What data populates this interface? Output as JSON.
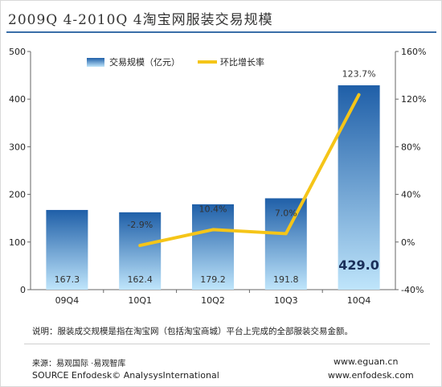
{
  "title": "2009Q 4-2010Q 4淘宝网服装交易规模",
  "chart_data": {
    "type": "bar",
    "categories": [
      "09Q4",
      "10Q1",
      "10Q2",
      "10Q3",
      "10Q4"
    ],
    "series": [
      {
        "name": "交易规模（亿元）",
        "type": "bar",
        "axis": "left",
        "values": [
          167.3,
          162.4,
          179.2,
          191.8,
          429.0
        ],
        "labels": [
          "167.3",
          "162.4",
          "179.2",
          "191.8",
          "429.0"
        ]
      },
      {
        "name": "环比增长率",
        "type": "line",
        "axis": "right",
        "values": [
          null,
          -2.9,
          10.4,
          7.0,
          123.7
        ],
        "labels": [
          "",
          "-2.9%",
          "10.4%",
          "7.0%",
          "123.7%"
        ]
      }
    ],
    "y_left": {
      "min": 0,
      "max": 500,
      "ticks": [
        "0",
        "100",
        "200",
        "300",
        "400",
        "500"
      ]
    },
    "y_right": {
      "min": -40,
      "max": 160,
      "ticks": [
        "-40%",
        "0%",
        "40%",
        "80%",
        "120%",
        "160%"
      ]
    },
    "legend_position": "top-left",
    "grid": false,
    "colors": {
      "bar_top": "#1f5fa8",
      "bar_bottom": "#bfe5fb",
      "line": "#f5c518",
      "title_rule": "#3a6ea8"
    }
  },
  "note": "说明：服装成交规模是指在淘宝网（包括淘宝商城）平台上完成的全部服装交易金额。",
  "source_cn": "来源：易观国际 ·易观智库",
  "source_en": "SOURCE Enfodesk© AnalysysInternational",
  "site1": "www.eguan.cn",
  "site2": "www.enfodesk.com"
}
